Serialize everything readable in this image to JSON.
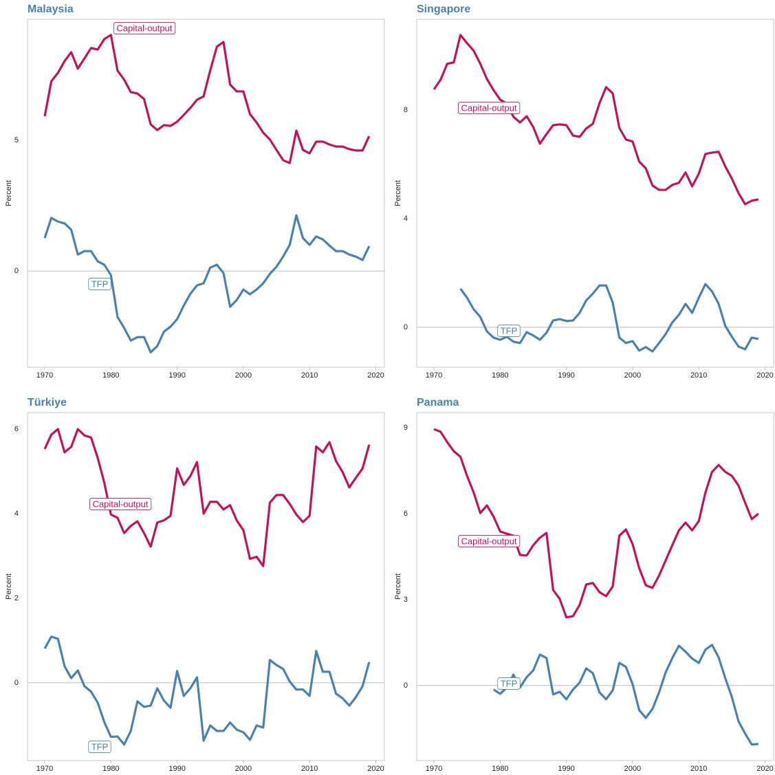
{
  "chart_data": [
    {
      "type": "line",
      "title": "Malaysia",
      "y_label": "Percent",
      "x": [
        1970,
        1971,
        1972,
        1973,
        1974,
        1975,
        1976,
        1977,
        1978,
        1979,
        1980,
        1981,
        1982,
        1983,
        1984,
        1985,
        1986,
        1987,
        1988,
        1989,
        1990,
        1991,
        1992,
        1993,
        1994,
        1995,
        1996,
        1997,
        1998,
        1999,
        2000,
        2001,
        2002,
        2003,
        2004,
        2005,
        2006,
        2007,
        2008,
        2009,
        2010,
        2011,
        2012,
        2013,
        2014,
        2015,
        2016,
        2017,
        2018,
        2019
      ],
      "series": [
        {
          "name": "Capital-output",
          "color": "#c0135a",
          "values": [
            5.92,
            7.26,
            7.58,
            8.03,
            8.37,
            7.74,
            8.13,
            8.53,
            8.47,
            8.87,
            9.03,
            7.66,
            7.32,
            6.84,
            6.79,
            6.58,
            5.61,
            5.39,
            5.58,
            5.55,
            5.71,
            5.97,
            6.24,
            6.55,
            6.68,
            7.68,
            8.58,
            8.76,
            7.13,
            6.87,
            6.87,
            6.0,
            5.68,
            5.29,
            5.03,
            4.63,
            4.24,
            4.13,
            5.37,
            4.63,
            4.5,
            4.95,
            4.95,
            4.84,
            4.76,
            4.76,
            4.66,
            4.61,
            4.61,
            5.16
          ]
        },
        {
          "name": "TFP",
          "color": "#4a82ad",
          "values": [
            1.26,
            2.03,
            1.89,
            1.82,
            1.58,
            0.63,
            0.76,
            0.76,
            0.37,
            0.24,
            -0.16,
            -1.76,
            -2.18,
            -2.66,
            -2.53,
            -2.53,
            -3.11,
            -2.87,
            -2.32,
            -2.13,
            -1.84,
            -1.32,
            -0.87,
            -0.55,
            -0.47,
            0.13,
            0.24,
            -0.08,
            -1.37,
            -1.11,
            -0.71,
            -0.89,
            -0.71,
            -0.47,
            -0.11,
            0.16,
            0.55,
            1.0,
            2.13,
            1.26,
            1.0,
            1.32,
            1.21,
            0.97,
            0.76,
            0.76,
            0.63,
            0.55,
            0.42,
            0.95
          ]
        }
      ],
      "xlim": [
        1967.4,
        2021.3
      ],
      "xticks": [
        1970,
        1980,
        1990,
        2000,
        2010,
        2020
      ],
      "ylim": [
        -3.68,
        9.63
      ],
      "yticks": [
        0,
        5
      ],
      "zero_line": true
    },
    {
      "type": "line",
      "title": "Singapore",
      "y_label": "Percent",
      "x": [
        1970,
        1971,
        1972,
        1973,
        1974,
        1975,
        1976,
        1977,
        1978,
        1979,
        1980,
        1981,
        1982,
        1983,
        1984,
        1985,
        1986,
        1987,
        1988,
        1989,
        1990,
        1991,
        1992,
        1993,
        1994,
        1995,
        1996,
        1997,
        1998,
        1999,
        2000,
        2001,
        2002,
        2003,
        2004,
        2005,
        2006,
        2007,
        2008,
        2009,
        2010,
        2011,
        2012,
        2013,
        2014,
        2015,
        2016,
        2017,
        2018,
        2019
      ],
      "series": [
        {
          "name": "Capital-output",
          "color": "#c0135a",
          "values": [
            8.76,
            9.11,
            9.7,
            9.75,
            10.76,
            10.46,
            10.18,
            9.7,
            9.14,
            8.73,
            8.38,
            8.23,
            7.75,
            7.54,
            7.77,
            7.37,
            6.76,
            7.11,
            7.44,
            7.47,
            7.44,
            7.06,
            7.01,
            7.32,
            7.49,
            8.25,
            8.84,
            8.61,
            7.34,
            6.91,
            6.84,
            6.1,
            5.85,
            5.22,
            5.06,
            5.06,
            5.24,
            5.32,
            5.7,
            5.19,
            5.65,
            6.38,
            6.43,
            6.46,
            5.92,
            5.47,
            4.94,
            4.53,
            4.66,
            4.71
          ]
        },
        {
          "name": "TFP",
          "color": "#4a82ad",
          "values": [
            null,
            null,
            null,
            null,
            1.42,
            1.09,
            0.66,
            0.38,
            -0.15,
            -0.38,
            -0.46,
            -0.35,
            -0.53,
            -0.58,
            -0.18,
            -0.3,
            -0.46,
            -0.2,
            0.25,
            0.3,
            0.23,
            0.25,
            0.53,
            0.99,
            1.24,
            1.54,
            1.54,
            0.91,
            -0.38,
            -0.58,
            -0.51,
            -0.86,
            -0.73,
            -0.89,
            -0.58,
            -0.25,
            0.18,
            0.46,
            0.86,
            0.53,
            1.09,
            1.59,
            1.32,
            0.86,
            0.05,
            -0.35,
            -0.71,
            -0.81,
            -0.38,
            -0.43
          ]
        }
      ],
      "xlim": [
        1967.4,
        2021.3
      ],
      "xticks": [
        1970,
        1980,
        1990,
        2000,
        2010,
        2020
      ],
      "ylim": [
        -1.47,
        11.34
      ],
      "yticks": [
        0,
        4,
        8
      ],
      "zero_line": true
    },
    {
      "type": "line",
      "title": "Türkiye",
      "y_label": "Percent",
      "x": [
        1970,
        1971,
        1972,
        1973,
        1974,
        1975,
        1976,
        1977,
        1978,
        1979,
        1980,
        1981,
        1982,
        1983,
        1984,
        1985,
        1986,
        1987,
        1988,
        1989,
        1990,
        1991,
        1992,
        1993,
        1994,
        1995,
        1996,
        1997,
        1998,
        1999,
        2000,
        2001,
        2002,
        2003,
        2004,
        2005,
        2006,
        2007,
        2008,
        2009,
        2010,
        2011,
        2012,
        2013,
        2014,
        2015,
        2016,
        2017,
        2018,
        2019
      ],
      "series": [
        {
          "name": "Capital-output",
          "color": "#c0135a",
          "values": [
            5.53,
            5.87,
            6.0,
            5.45,
            5.58,
            6.0,
            5.85,
            5.8,
            5.32,
            4.73,
            3.98,
            3.9,
            3.54,
            3.71,
            3.82,
            3.54,
            3.22,
            3.79,
            3.84,
            3.95,
            5.07,
            4.68,
            4.89,
            5.22,
            4.0,
            4.28,
            4.28,
            4.1,
            4.2,
            3.84,
            3.61,
            2.93,
            2.98,
            2.76,
            4.26,
            4.44,
            4.44,
            4.23,
            3.98,
            3.8,
            3.95,
            5.59,
            5.45,
            5.69,
            5.24,
            4.98,
            4.62,
            4.85,
            5.07,
            5.63
          ]
        },
        {
          "name": "TFP",
          "color": "#4a82ad",
          "values": [
            0.81,
            1.09,
            1.04,
            0.39,
            0.11,
            0.29,
            -0.08,
            -0.21,
            -0.47,
            -0.93,
            -1.28,
            -1.27,
            -1.46,
            -1.14,
            -0.44,
            -0.57,
            -0.54,
            -0.13,
            -0.42,
            -0.59,
            0.28,
            -0.31,
            -0.13,
            0.13,
            -1.37,
            -1.01,
            -1.14,
            -1.14,
            -0.94,
            -1.11,
            -1.17,
            -1.35,
            -1.01,
            -1.06,
            0.54,
            0.42,
            0.33,
            0.03,
            -0.16,
            -0.16,
            -0.31,
            0.75,
            0.26,
            0.26,
            -0.26,
            -0.37,
            -0.54,
            -0.34,
            -0.08,
            0.49
          ]
        }
      ],
      "xlim": [
        1967.4,
        2021.3
      ],
      "xticks": [
        1970,
        1980,
        1990,
        2000,
        2010,
        2020
      ],
      "ylim": [
        -1.84,
        6.39
      ],
      "yticks": [
        0,
        2,
        4,
        6
      ],
      "zero_line": true
    },
    {
      "type": "line",
      "title": "Panama",
      "y_label": "Percent",
      "x": [
        1970,
        1971,
        1972,
        1973,
        1974,
        1975,
        1976,
        1977,
        1978,
        1979,
        1980,
        1981,
        1982,
        1983,
        1984,
        1985,
        1986,
        1987,
        1988,
        1989,
        1990,
        1991,
        1992,
        1993,
        1994,
        1995,
        1996,
        1997,
        1998,
        1999,
        2000,
        2001,
        2002,
        2003,
        2004,
        2005,
        2006,
        2007,
        2008,
        2009,
        2010,
        2011,
        2012,
        2013,
        2014,
        2015,
        2016,
        2017,
        2018,
        2019
      ],
      "series": [
        {
          "name": "Capital-output",
          "color": "#c0135a",
          "values": [
            8.95,
            8.86,
            8.5,
            8.18,
            7.99,
            7.32,
            6.74,
            6.02,
            6.29,
            5.9,
            5.38,
            5.3,
            5.23,
            4.56,
            4.54,
            4.9,
            5.16,
            5.33,
            3.34,
            3.02,
            2.38,
            2.42,
            2.81,
            3.53,
            3.58,
            3.26,
            3.12,
            3.46,
            5.23,
            5.45,
            4.94,
            4.1,
            3.5,
            3.41,
            3.84,
            4.37,
            4.9,
            5.42,
            5.69,
            5.42,
            5.74,
            6.74,
            7.46,
            7.7,
            7.46,
            7.32,
            6.98,
            6.38,
            5.81,
            6.0
          ]
        },
        {
          "name": "TFP",
          "color": "#4a82ad",
          "values": [
            null,
            null,
            null,
            null,
            null,
            null,
            null,
            null,
            null,
            -0.14,
            -0.29,
            -0.07,
            0.38,
            -0.07,
            0.29,
            0.53,
            1.08,
            0.96,
            -0.31,
            -0.22,
            -0.48,
            -0.14,
            0.1,
            0.6,
            0.43,
            -0.24,
            -0.48,
            -0.17,
            0.79,
            0.65,
            0.05,
            -0.86,
            -1.13,
            -0.82,
            -0.24,
            0.46,
            0.96,
            1.39,
            1.18,
            0.94,
            0.79,
            1.25,
            1.42,
            0.98,
            0.26,
            -0.41,
            -1.25,
            -1.68,
            -2.06,
            -2.04
          ]
        }
      ],
      "xlim": [
        1967.4,
        2021.3
      ],
      "xticks": [
        1970,
        1980,
        1990,
        2000,
        2010,
        2020
      ],
      "ylim": [
        -2.62,
        9.53
      ],
      "yticks": [
        0,
        3,
        6,
        9
      ],
      "zero_line": true
    }
  ]
}
